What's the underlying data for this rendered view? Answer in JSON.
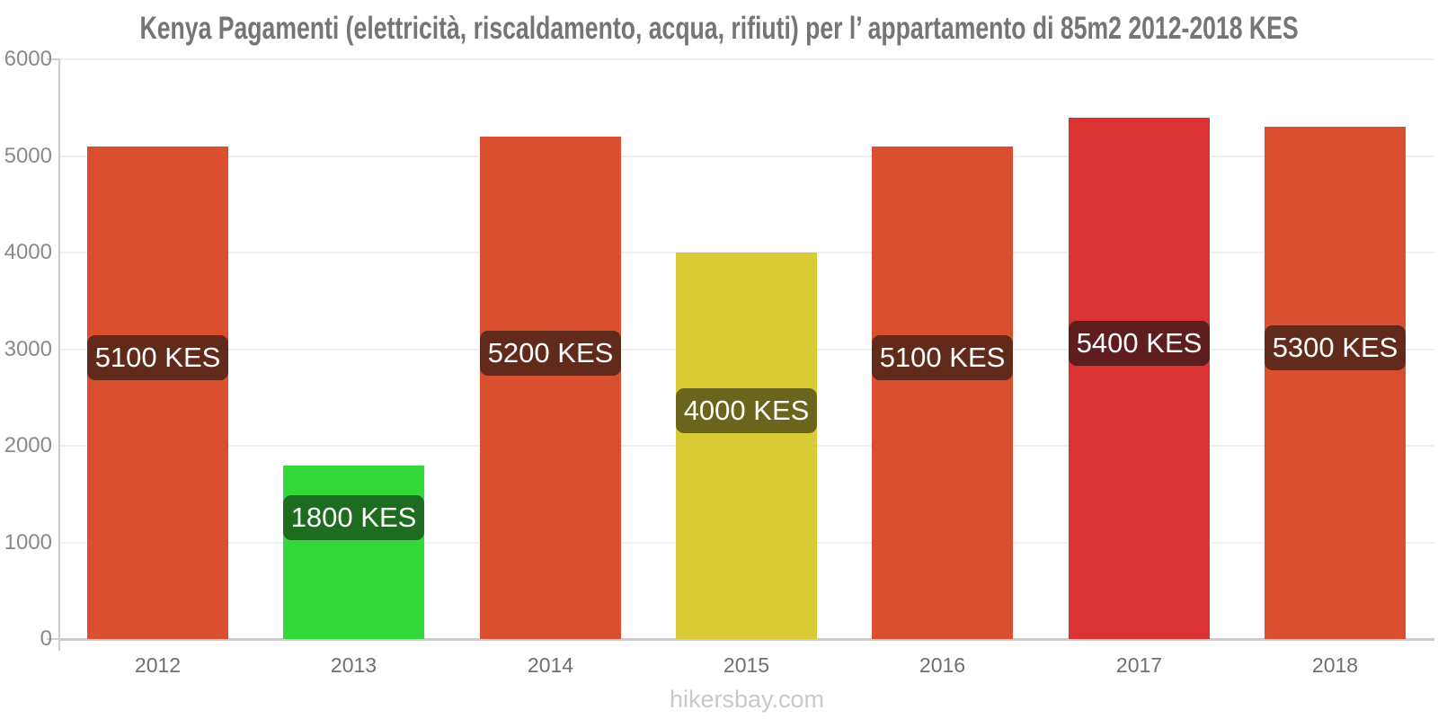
{
  "page": {
    "watermark": "hikersbay.com"
  },
  "chart_data": {
    "type": "bar",
    "title": "Kenya Pagamenti (elettricità, riscaldamento, acqua, rifiuti) per l’ appartamento di 85m2 2012-2018 KES",
    "unit": "KES",
    "categories": [
      "2012",
      "2013",
      "2014",
      "2015",
      "2016",
      "2017",
      "2018"
    ],
    "values": [
      5100,
      1800,
      5200,
      4000,
      5100,
      5400,
      5300
    ],
    "bar_labels": [
      "5100 KES",
      "1800 KES",
      "5200 KES",
      "4000 KES",
      "5100 KES",
      "5400 KES",
      "5300 KES"
    ],
    "bar_colors": [
      "#db4f31",
      "#33d83a",
      "#db4f31",
      "#d8cb35",
      "#db4f31",
      "#db3334",
      "#db4f31"
    ],
    "label_bg_colors": [
      "#612a1a",
      "#1e6c20",
      "#612a1a",
      "#6b641c",
      "#612a1a",
      "#601d1e",
      "#612a1a"
    ],
    "label_text_color": "#ffffff",
    "xlabel": "",
    "ylabel": "",
    "ylim": [
      0,
      6000
    ],
    "yticks": [
      0,
      1000,
      2000,
      3000,
      4000,
      5000,
      6000
    ],
    "grid": true,
    "legend": false,
    "colors": {
      "grid": "#efefef",
      "axis": "#cccccc",
      "y_tick_text": "#8a8a8a",
      "x_tick_text": "#6f6f6f",
      "title_text": "#757575",
      "watermark_text": "#c9c9c9"
    }
  }
}
